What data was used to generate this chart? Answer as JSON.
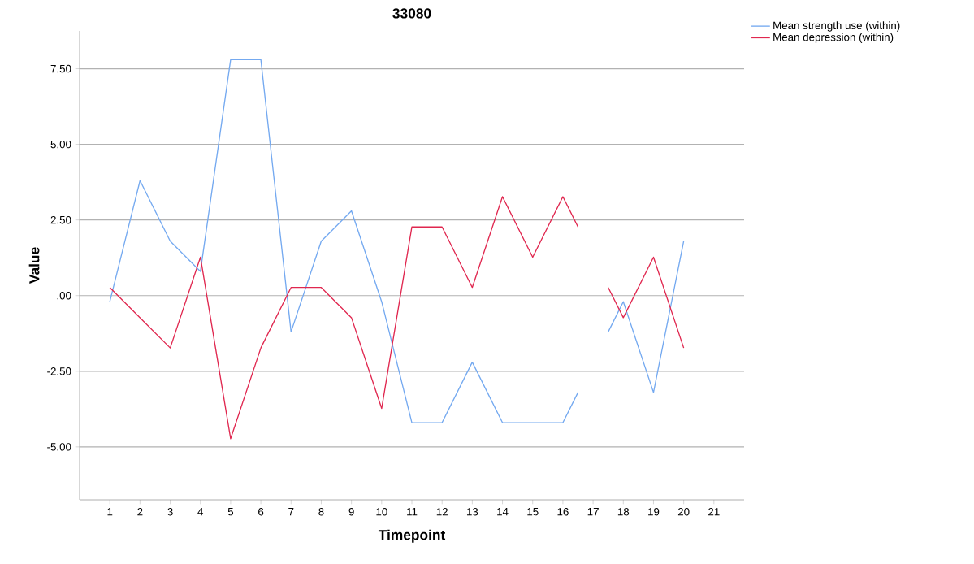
{
  "chart_data": {
    "type": "line",
    "title": "33080",
    "xlabel": "Timepoint",
    "ylabel": "Value",
    "xlim": [
      0,
      22
    ],
    "xticks": [
      1,
      2,
      3,
      4,
      5,
      6,
      7,
      8,
      9,
      10,
      11,
      12,
      13,
      14,
      15,
      16,
      17,
      18,
      19,
      20,
      21
    ],
    "ylim": [
      -6.75,
      8.75
    ],
    "yticks": [
      {
        "value": -5,
        "label": "-5.00"
      },
      {
        "value": -2.5,
        "label": "-2.50"
      },
      {
        "value": 0,
        "label": ".00"
      },
      {
        "value": 2.5,
        "label": "2.50"
      },
      {
        "value": 5,
        "label": "5.00"
      },
      {
        "value": 7.5,
        "label": "7.50"
      }
    ],
    "grid": "y",
    "legend": "top right",
    "marker": "none",
    "line_style": "solid",
    "series": [
      {
        "name": "Mean strength use (within)",
        "color": "#74a9f0",
        "x": [
          1,
          2,
          3,
          4,
          5,
          6,
          7,
          8,
          9,
          10,
          11,
          12,
          13,
          14,
          15,
          16,
          16.5,
          17,
          17.5,
          18,
          19,
          20
        ],
        "values": [
          -0.2,
          3.8,
          1.8,
          0.8,
          7.8,
          7.8,
          -1.2,
          1.8,
          2.8,
          -0.2,
          -4.2,
          -4.2,
          -2.2,
          -4.2,
          -4.2,
          -4.2,
          -3.2,
          null,
          -1.2,
          -0.2,
          -3.2,
          1.8
        ]
      },
      {
        "name": "Mean depression (within)",
        "color": "#e0274f",
        "x": [
          1,
          2,
          3,
          4,
          5,
          6,
          7,
          8,
          9,
          10,
          11,
          12,
          13,
          14,
          15,
          16,
          16.5,
          17,
          17.5,
          18,
          19,
          20
        ],
        "values": [
          0.27,
          -0.73,
          -1.73,
          1.27,
          -4.73,
          -1.73,
          0.27,
          0.27,
          -0.73,
          -3.73,
          2.27,
          2.27,
          0.27,
          3.27,
          1.27,
          3.27,
          2.27,
          null,
          0.27,
          -0.73,
          1.27,
          -1.73
        ]
      }
    ]
  }
}
